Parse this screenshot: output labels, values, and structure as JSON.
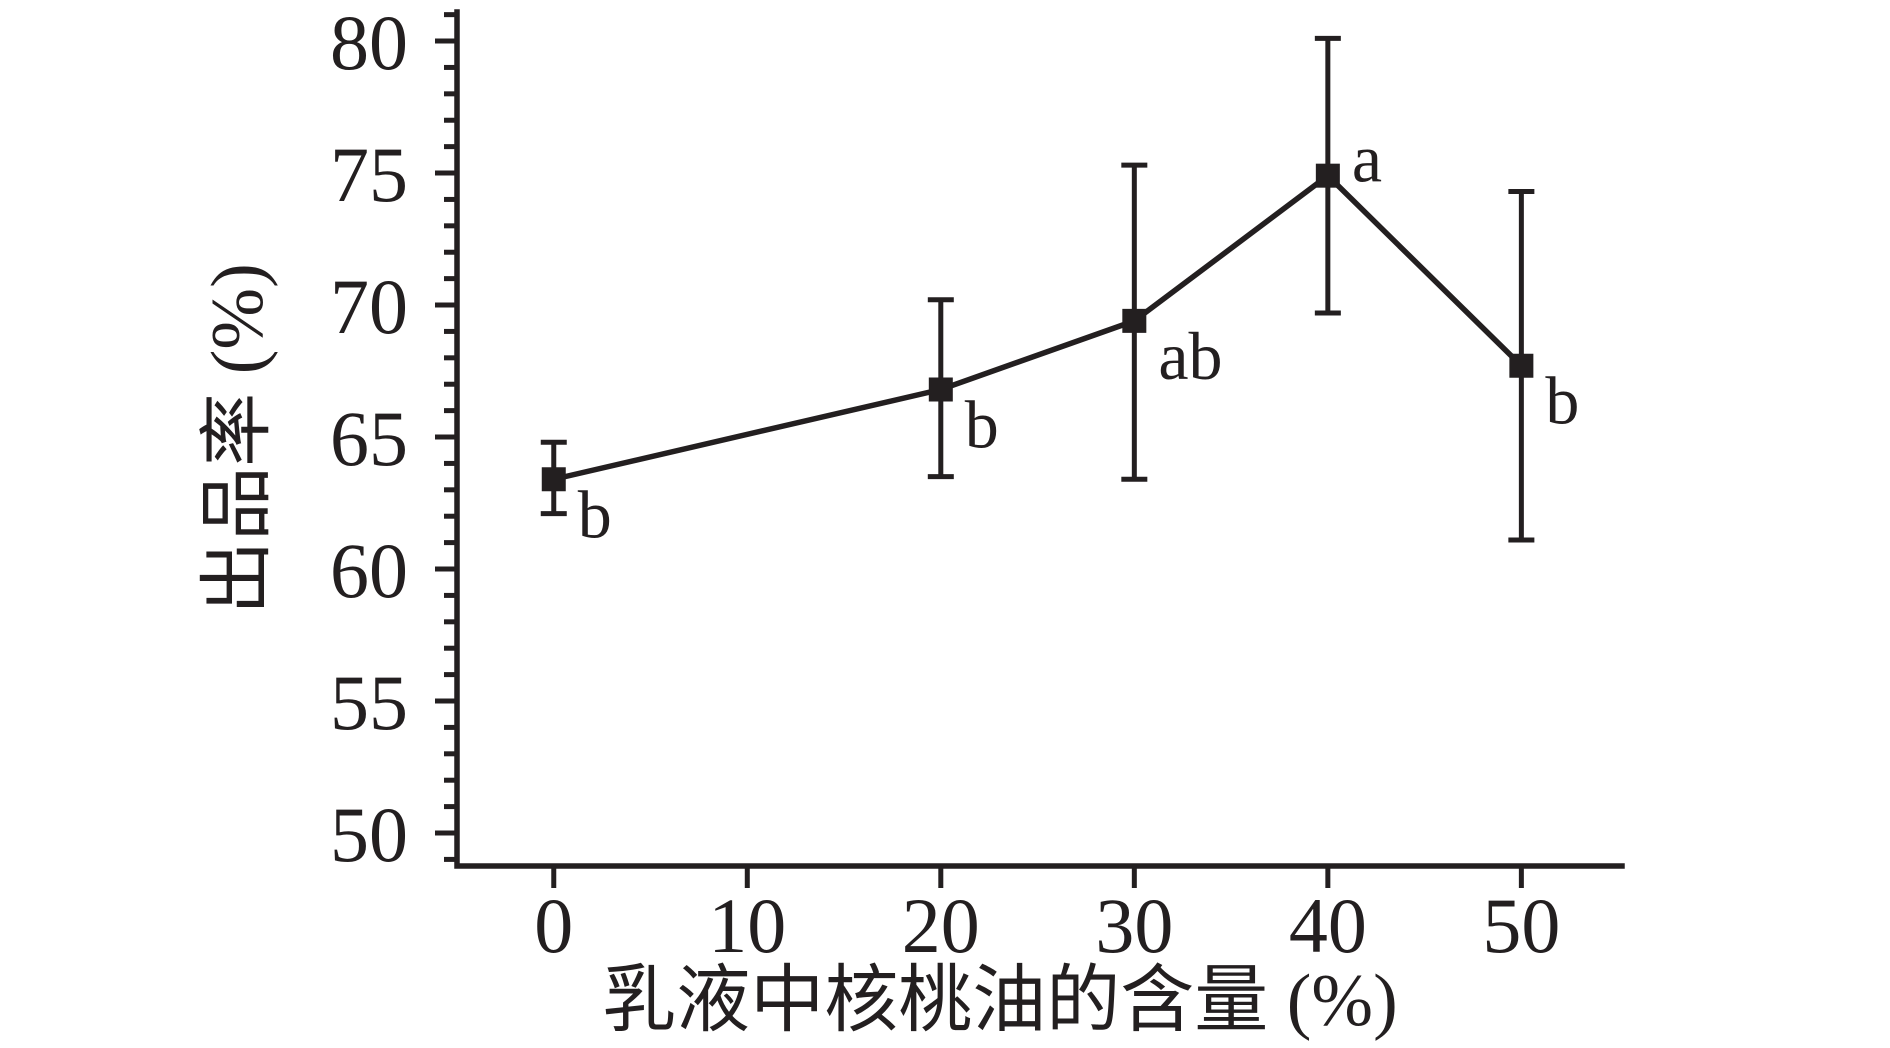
{
  "figure": {
    "background": "#ffffff",
    "ink_color": "#231f20"
  },
  "chart_data": {
    "type": "line",
    "title": "",
    "xlabel": "乳液中核桃油的含量 (%)",
    "ylabel": "出品率 (%)",
    "x": [
      0,
      20,
      30,
      40,
      50
    ],
    "y": [
      63.4,
      66.8,
      69.4,
      74.9,
      67.7
    ],
    "error_up": [
      1.4,
      3.4,
      5.9,
      5.2,
      6.6
    ],
    "error_down": [
      1.3,
      3.3,
      6.0,
      5.2,
      6.6
    ],
    "point_labels": [
      "b",
      "b",
      "ab",
      "a",
      "b"
    ],
    "label_placement": [
      "below",
      "below",
      "below",
      "above",
      "below"
    ],
    "x_ticks": [
      0,
      10,
      20,
      30,
      40,
      50
    ],
    "y_ticks": [
      50,
      55,
      60,
      65,
      70,
      75,
      80
    ],
    "y_minor_ticks": {
      "start": 49,
      "end": 81,
      "step": 1
    },
    "xlim": [
      -5,
      55.2
    ],
    "ylim": [
      48.75,
      81.1
    ],
    "marker": "filled-square",
    "line_color": "#231f20",
    "grid": false,
    "legend": null
  }
}
